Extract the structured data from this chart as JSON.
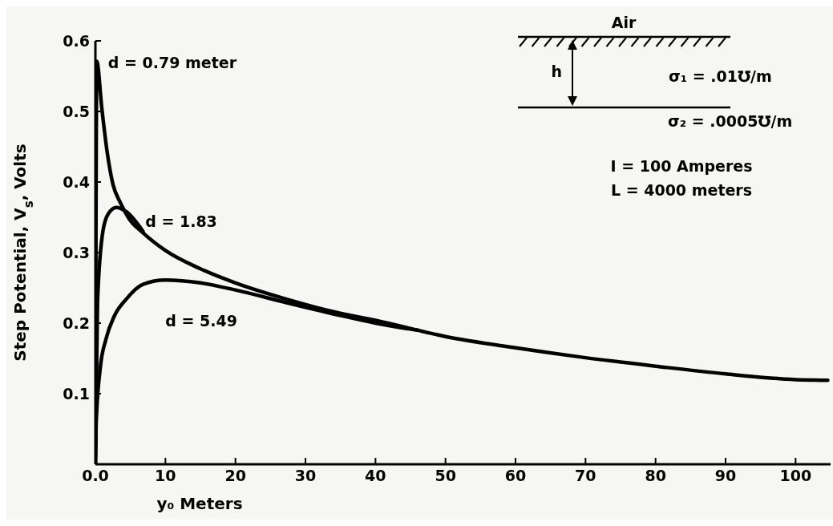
{
  "chart_data": {
    "type": "line",
    "xlabel": "y₀ Meters",
    "ylabel": "Step Potential, V$_{s}$, Volts",
    "xlim": [
      0,
      105
    ],
    "xticks": [
      {
        "value": 0,
        "label": "0.0"
      },
      10,
      20,
      30,
      40,
      50,
      60,
      70,
      80,
      90,
      100
    ],
    "ylim": [
      0,
      0.6
    ],
    "yticks": [
      {
        "value": 0,
        "label": null
      },
      0.1,
      0.2,
      0.3,
      0.4,
      0.5,
      0.6
    ],
    "marker": "none",
    "line_style": "solid",
    "series": [
      {
        "name": "d = 0.79 meter",
        "color": "#000000",
        "x": [
          0,
          0.2,
          0.9,
          1.7,
          2.5,
          3.6,
          4.8,
          6.8,
          10,
          15,
          20,
          27.3,
          34.5,
          40,
          50,
          60,
          70,
          80,
          90,
          100,
          104.6
        ],
        "values": [
          0,
          0.571,
          0.506,
          0.441,
          0.397,
          0.37,
          0.348,
          0.328,
          0.303,
          0.277,
          0.257,
          0.234,
          0.215,
          0.204,
          0.181,
          0.165,
          0.151,
          0.139,
          0.128,
          0.12,
          0.119
        ]
      },
      {
        "name": "d = 1.83",
        "color": "#000000",
        "x": [
          0,
          0.3,
          1.1,
          1.9,
          3,
          4.4,
          6.8
        ],
        "values": [
          0,
          0.23,
          0.332,
          0.356,
          0.364,
          0.358,
          0.33
        ]
      },
      {
        "name": "d = 5.49",
        "color": "#000000",
        "x": [
          0,
          0.1,
          0.7,
          1.5,
          2.7,
          4.4,
          6.8,
          10,
          15,
          20,
          27.3,
          34.5,
          40,
          46
        ],
        "values": [
          0,
          0.056,
          0.137,
          0.177,
          0.21,
          0.234,
          0.255,
          0.261,
          0.257,
          0.247,
          0.229,
          0.212,
          0.2,
          0.19
        ]
      }
    ],
    "annotations": [
      "Air",
      "h",
      "σ₁ = .01℧/m",
      "σ₂ = .0005℧/m",
      "I = 100 Amperes",
      "L = 4000 meters"
    ]
  }
}
